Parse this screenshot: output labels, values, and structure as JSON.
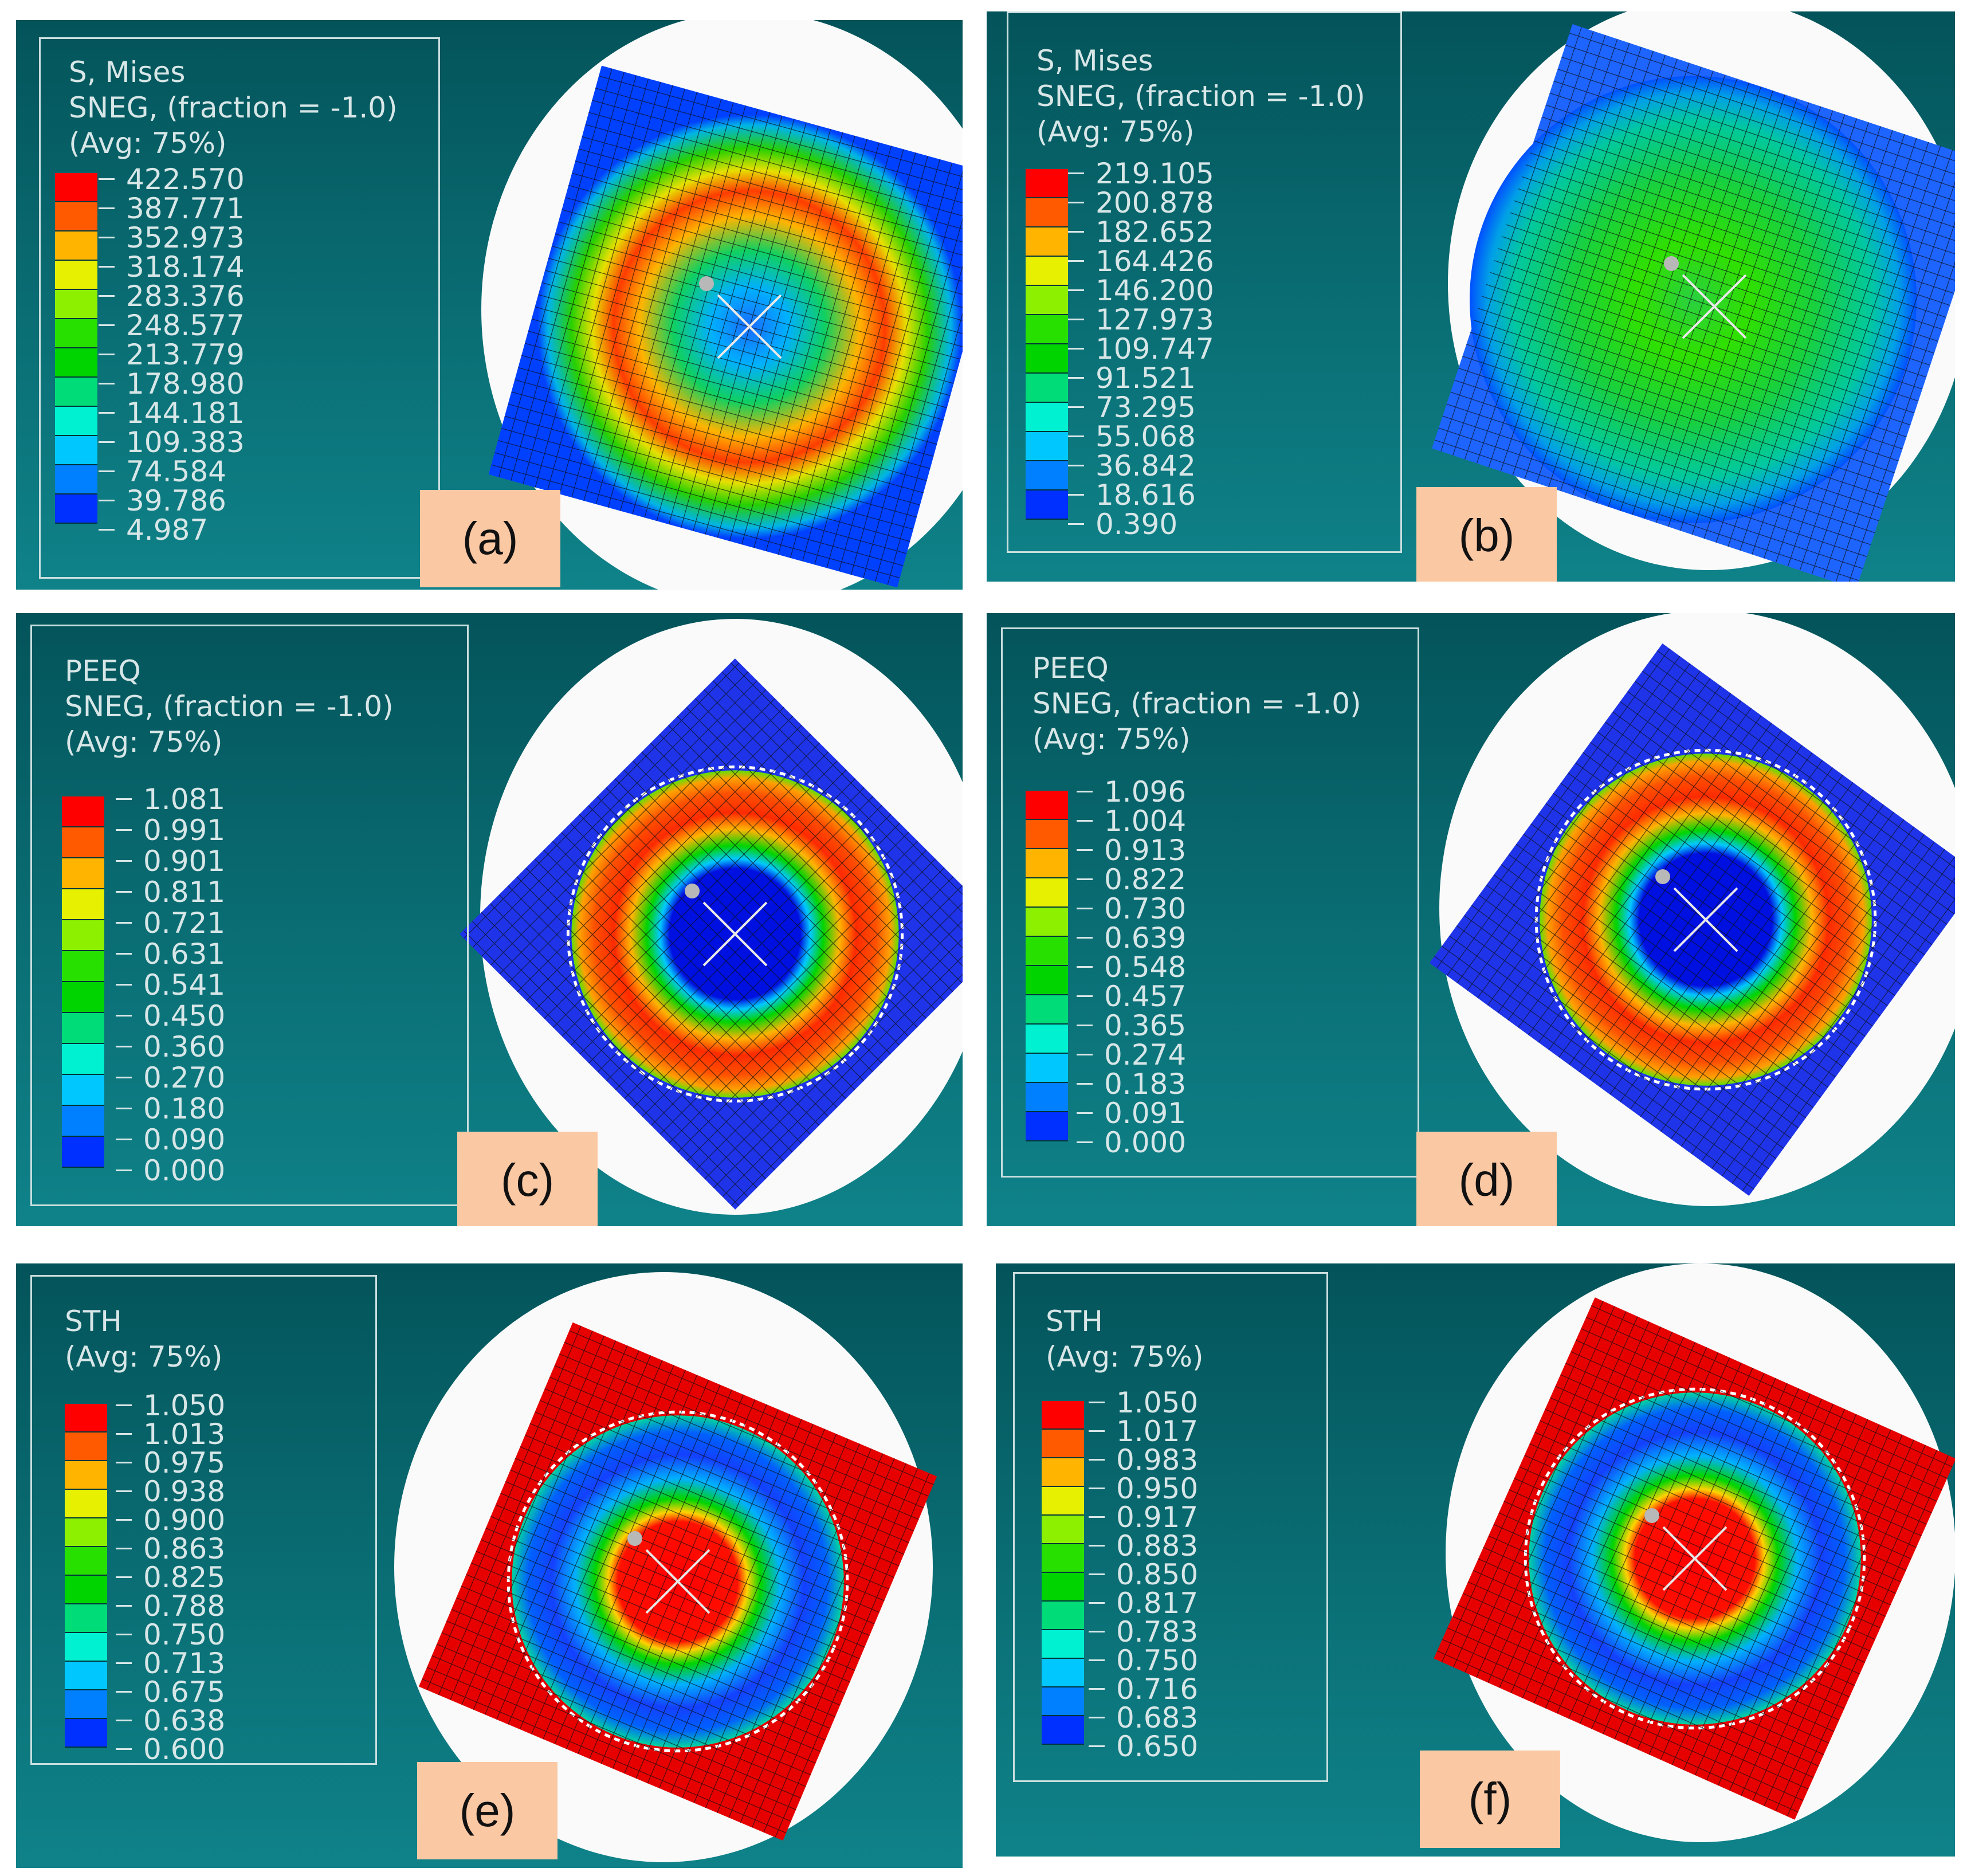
{
  "figure": {
    "panels": [
      {
        "tag": "(a)",
        "variable": "S, Mises",
        "section": "SNEG, (fraction = -1.0)",
        "averaging": "(Avg: 75%)",
        "values": [
          "422.570",
          "387.771",
          "352.973",
          "318.174",
          "283.376",
          "248.577",
          "213.779",
          "178.980",
          "144.181",
          "109.383",
          "74.584",
          "39.786",
          "4.987"
        ],
        "colors": [
          "#ff0000",
          "#ff5a00",
          "#ffb400",
          "#e6f000",
          "#8cf000",
          "#28e000",
          "#00d400",
          "#00dc78",
          "#00f0d2",
          "#00c8ff",
          "#0080ff",
          "#0030ff"
        ],
        "contour_pattern": "mises-ring"
      },
      {
        "tag": "(b)",
        "variable": "S, Mises",
        "section": "SNEG, (fraction = -1.0)",
        "averaging": "(Avg: 75%)",
        "values": [
          "219.105",
          "200.878",
          "182.652",
          "164.426",
          "146.200",
          "127.973",
          "109.747",
          "91.521",
          "73.295",
          "55.068",
          "36.842",
          "18.616",
          "0.390"
        ],
        "colors": [
          "#ff0000",
          "#ff5a00",
          "#ffb400",
          "#e6f000",
          "#8cf000",
          "#28e000",
          "#00d400",
          "#00dc78",
          "#00f0d2",
          "#00c8ff",
          "#0080ff",
          "#0030ff"
        ],
        "contour_pattern": "mises-green"
      },
      {
        "tag": "(c)",
        "variable": "PEEQ",
        "section": "SNEG, (fraction = -1.0)",
        "averaging": "(Avg: 75%)",
        "values": [
          "1.081",
          "0.991",
          "0.901",
          "0.811",
          "0.721",
          "0.631",
          "0.541",
          "0.450",
          "0.360",
          "0.270",
          "0.180",
          "0.090",
          "0.000"
        ],
        "colors": [
          "#ff0000",
          "#ff5a00",
          "#ffb400",
          "#e6f000",
          "#8cf000",
          "#28e000",
          "#00d400",
          "#00dc78",
          "#00f0d2",
          "#00c8ff",
          "#0080ff",
          "#0030ff"
        ],
        "contour_pattern": "peeq-ring"
      },
      {
        "tag": "(d)",
        "variable": "PEEQ",
        "section": "SNEG, (fraction = -1.0)",
        "averaging": "(Avg: 75%)",
        "values": [
          "1.096",
          "1.004",
          "0.913",
          "0.822",
          "0.730",
          "0.639",
          "0.548",
          "0.457",
          "0.365",
          "0.274",
          "0.183",
          "0.091",
          "0.000"
        ],
        "colors": [
          "#ff0000",
          "#ff5a00",
          "#ffb400",
          "#e6f000",
          "#8cf000",
          "#28e000",
          "#00d400",
          "#00dc78",
          "#00f0d2",
          "#00c8ff",
          "#0080ff",
          "#0030ff"
        ],
        "contour_pattern": "peeq-ring"
      },
      {
        "tag": "(e)",
        "variable": "STH",
        "averaging": "(Avg: 75%)",
        "values": [
          "1.050",
          "1.013",
          "0.975",
          "0.938",
          "0.900",
          "0.863",
          "0.825",
          "0.788",
          "0.750",
          "0.713",
          "0.675",
          "0.638",
          "0.600"
        ],
        "colors": [
          "#ff0000",
          "#ff5a00",
          "#ffb400",
          "#e6f000",
          "#8cf000",
          "#28e000",
          "#00d400",
          "#00dc78",
          "#00f0d2",
          "#00c8ff",
          "#0080ff",
          "#0030ff"
        ],
        "contour_pattern": "sth-ring"
      },
      {
        "tag": "(f)",
        "variable": "STH",
        "averaging": "(Avg: 75%)",
        "values": [
          "1.050",
          "1.017",
          "0.983",
          "0.950",
          "0.917",
          "0.883",
          "0.850",
          "0.817",
          "0.783",
          "0.750",
          "0.716",
          "0.683",
          "0.650"
        ],
        "colors": [
          "#ff0000",
          "#ff5a00",
          "#ffb400",
          "#e6f000",
          "#8cf000",
          "#28e000",
          "#00d400",
          "#00dc78",
          "#00f0d2",
          "#00c8ff",
          "#0080ff",
          "#0030ff"
        ],
        "contour_pattern": "sth-ring"
      }
    ]
  }
}
